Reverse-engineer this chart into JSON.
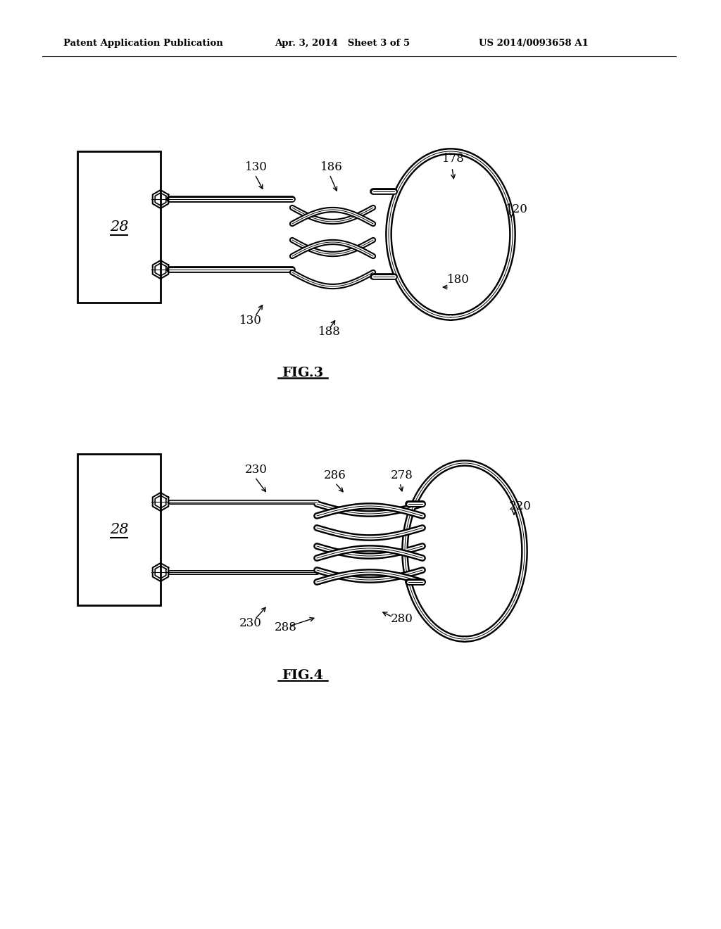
{
  "bg_color": "#ffffff",
  "header_left": "Patent Application Publication",
  "header_mid": "Apr. 3, 2014   Sheet 3 of 5",
  "header_right": "US 2014/0093658 A1",
  "fig3_label": "FIG.3",
  "fig4_label": "FIG.4",
  "box28_label": "28",
  "fig3_labels": {
    "130_top": "130",
    "186": "186",
    "178": "178",
    "120": "120",
    "180": "180",
    "188": "188",
    "130_bot": "130"
  },
  "fig4_labels": {
    "230_top": "230",
    "286": "286",
    "278": "278",
    "220": "220",
    "280": "280",
    "288": "288",
    "230_bot": "230"
  }
}
